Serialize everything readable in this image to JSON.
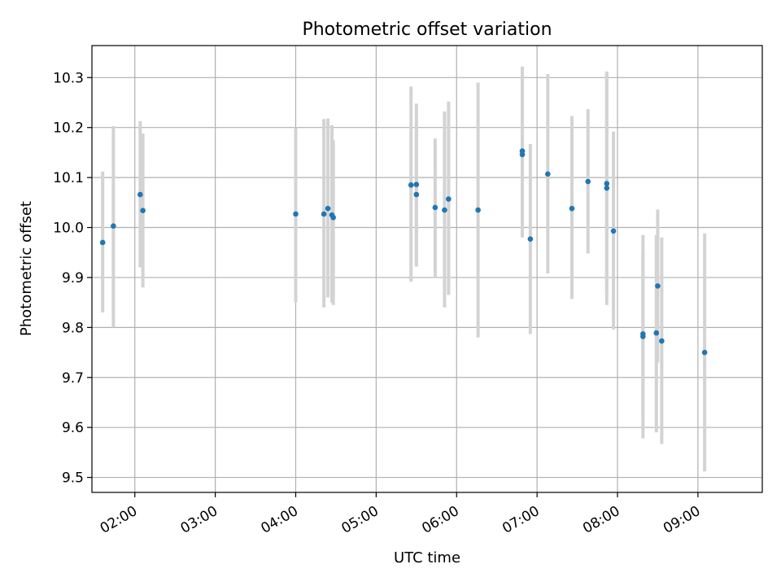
{
  "chart_data": {
    "type": "scatter",
    "title": "Photometric offset variation",
    "xlabel": "UTC time",
    "ylabel": "Photometric offset",
    "x_tick_labels": [
      "02:00",
      "03:00",
      "04:00",
      "05:00",
      "06:00",
      "07:00",
      "08:00",
      "09:00"
    ],
    "y_tick_labels": [
      "9.5",
      "9.6",
      "9.7",
      "9.8",
      "9.9",
      "10.0",
      "10.1",
      "10.2",
      "10.3"
    ],
    "xlim": [
      "01:28",
      "09:48"
    ],
    "ylim": [
      9.47,
      10.364
    ],
    "grid": true,
    "x_unit": "UTC time (HH:MM)",
    "points": [
      {
        "x": "01:36",
        "y": 9.97,
        "ymin": 9.83,
        "ymax": 10.112
      },
      {
        "x": "01:44",
        "y": 10.003,
        "ymin": 9.8,
        "ymax": 10.203
      },
      {
        "x": "02:04",
        "y": 10.066,
        "ymin": 9.92,
        "ymax": 10.213
      },
      {
        "x": "02:06",
        "y": 10.034,
        "ymin": 9.88,
        "ymax": 10.188
      },
      {
        "x": "04:00",
        "y": 10.027,
        "ymin": 9.85,
        "ymax": 10.2
      },
      {
        "x": "04:21",
        "y": 10.027,
        "ymin": 9.84,
        "ymax": 10.217
      },
      {
        "x": "04:24",
        "y": 10.038,
        "ymin": 9.86,
        "ymax": 10.218
      },
      {
        "x": "04:27",
        "y": 10.025,
        "ymin": 9.85,
        "ymax": 10.205
      },
      {
        "x": "04:28",
        "y": 10.02,
        "ymin": 9.845,
        "ymax": 10.175
      },
      {
        "x": "05:26",
        "y": 10.085,
        "ymin": 9.892,
        "ymax": 10.282
      },
      {
        "x": "05:30",
        "y": 10.086,
        "ymin": 9.922,
        "ymax": 10.248
      },
      {
        "x": "05:30",
        "y": 10.066,
        "ymin": 9.922,
        "ymax": 10.21
      },
      {
        "x": "05:44",
        "y": 10.04,
        "ymin": 9.9,
        "ymax": 10.178
      },
      {
        "x": "05:51",
        "y": 10.035,
        "ymin": 9.84,
        "ymax": 10.232
      },
      {
        "x": "05:54",
        "y": 10.057,
        "ymin": 9.865,
        "ymax": 10.252
      },
      {
        "x": "06:16",
        "y": 10.035,
        "ymin": 9.78,
        "ymax": 10.29
      },
      {
        "x": "06:49",
        "y": 10.153,
        "ymin": 9.98,
        "ymax": 10.322
      },
      {
        "x": "06:49",
        "y": 10.146,
        "ymin": 9.98,
        "ymax": 10.3
      },
      {
        "x": "06:55",
        "y": 9.977,
        "ymin": 9.787,
        "ymax": 10.167
      },
      {
        "x": "07:08",
        "y": 10.107,
        "ymin": 9.908,
        "ymax": 10.307
      },
      {
        "x": "07:26",
        "y": 10.038,
        "ymin": 9.857,
        "ymax": 10.223
      },
      {
        "x": "07:38",
        "y": 10.092,
        "ymin": 9.948,
        "ymax": 10.237
      },
      {
        "x": "07:52",
        "y": 10.088,
        "ymin": 9.868,
        "ymax": 10.31
      },
      {
        "x": "07:52",
        "y": 10.079,
        "ymin": 9.845,
        "ymax": 10.312
      },
      {
        "x": "07:57",
        "y": 9.993,
        "ymin": 9.796,
        "ymax": 10.192
      },
      {
        "x": "08:19",
        "y": 9.787,
        "ymin": 9.578,
        "ymax": 9.985
      },
      {
        "x": "08:19",
        "y": 9.782,
        "ymin": 9.62,
        "ymax": 9.95
      },
      {
        "x": "08:29",
        "y": 9.789,
        "ymin": 9.59,
        "ymax": 9.985
      },
      {
        "x": "08:30",
        "y": 9.883,
        "ymin": 9.73,
        "ymax": 10.036
      },
      {
        "x": "08:33",
        "y": 9.773,
        "ymin": 9.567,
        "ymax": 9.98
      },
      {
        "x": "09:05",
        "y": 9.75,
        "ymin": 9.512,
        "ymax": 9.988
      }
    ],
    "colors": {
      "point": "#1f77b4",
      "errorbar": "#d3d3d3",
      "grid": "#b0b0b0",
      "axes": "#000000"
    }
  }
}
